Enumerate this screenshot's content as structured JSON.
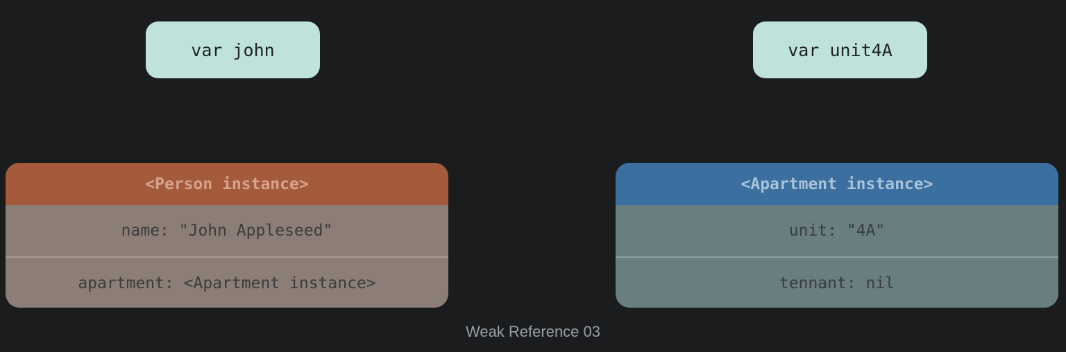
{
  "variables": {
    "john": "var john",
    "unit4A": "var unit4A"
  },
  "person_instance": {
    "title": "<Person instance>",
    "fields": [
      "name: \"John Appleseed\"",
      "apartment: <Apartment instance>"
    ]
  },
  "apartment_instance": {
    "title": "<Apartment instance>",
    "fields": [
      "unit: \"4A\"",
      "tennant: nil"
    ]
  },
  "caption": "Weak Reference 03",
  "colors": {
    "background": "#1b1c1e",
    "variable_box": "#bfe3db",
    "person_header": "#a65a3c",
    "person_body": "#8c7e76",
    "apartment_header": "#3a6f9f",
    "apartment_body": "#687e80"
  }
}
